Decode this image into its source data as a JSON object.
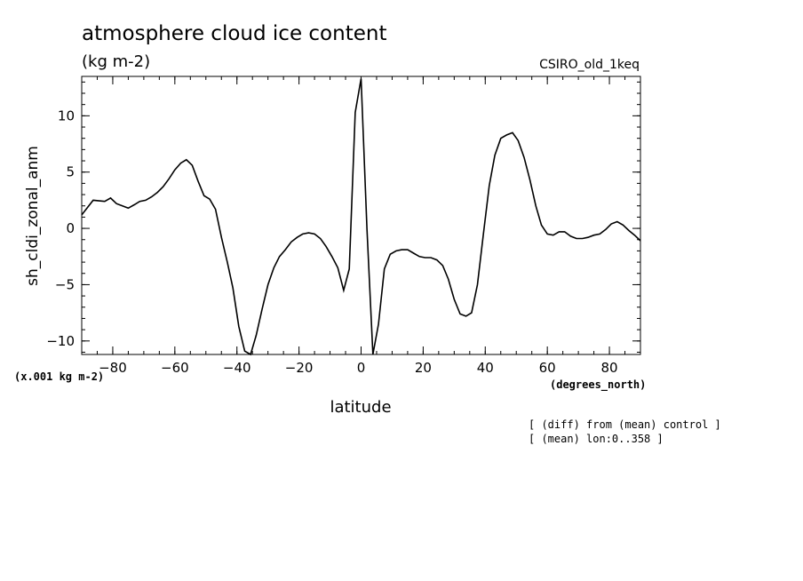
{
  "title": "atmosphere cloud ice content",
  "units": "(kg m-2)",
  "model": "CSIRO_old_1keq",
  "notes": [
    "[ (diff) from (mean) control ]",
    "[ (mean) lon:0..358 ]"
  ],
  "chart_data": {
    "type": "line",
    "title": "atmosphere cloud ice content",
    "xlabel": "latitude",
    "xunits": "(degrees_north)",
    "ylabel": "sh_cldi_zonal_anm",
    "yunits": "(x.001 kg m-2)",
    "xlim": [
      -90,
      90
    ],
    "ylim": [
      -11.2,
      13.5
    ],
    "xticks": [
      -80,
      -60,
      -40,
      -20,
      0,
      20,
      40,
      60,
      80
    ],
    "yticks": [
      -10,
      -5,
      0,
      5,
      10
    ],
    "grid": false,
    "series": [
      {
        "x": [
          -90,
          -86.3,
          -82.6,
          -80.7,
          -78.8,
          -76.9,
          -75.0,
          -73.1,
          -71.3,
          -69.4,
          -67.5,
          -65.6,
          -63.8,
          -61.9,
          -60.0,
          -58.1,
          -56.3,
          -54.4,
          -52.5,
          -50.6,
          -48.8,
          -46.9,
          -45.0,
          -43.1,
          -41.3,
          -39.4,
          -37.5,
          -35.6,
          -33.8,
          -31.9,
          -30.0,
          -28.1,
          -26.3,
          -24.4,
          -22.5,
          -20.6,
          -18.8,
          -16.9,
          -15.0,
          -13.1,
          -11.3,
          -9.4,
          -7.5,
          -5.6,
          -3.8,
          -1.9,
          0.0,
          1.9,
          3.8,
          5.6,
          7.5,
          9.4,
          11.3,
          13.1,
          15.0,
          16.9,
          18.8,
          20.6,
          22.5,
          24.4,
          26.3,
          28.1,
          30.0,
          31.9,
          33.8,
          35.6,
          37.5,
          39.4,
          41.3,
          43.1,
          45.0,
          46.9,
          48.8,
          50.6,
          52.5,
          54.4,
          56.3,
          58.1,
          60.0,
          61.9,
          63.8,
          65.6,
          67.5,
          69.4,
          71.3,
          73.1,
          75.0,
          76.9,
          78.8,
          80.6,
          82.5,
          84.4,
          86.3,
          88.1,
          90.0
        ],
        "y": [
          1.2,
          2.5,
          2.4,
          2.7,
          2.2,
          2.0,
          1.8,
          2.1,
          2.4,
          2.5,
          2.8,
          3.2,
          3.7,
          4.4,
          5.2,
          5.8,
          6.1,
          5.6,
          4.2,
          2.9,
          2.6,
          1.7,
          -0.8,
          -3.0,
          -5.3,
          -8.7,
          -10.9,
          -11.2,
          -9.5,
          -7.2,
          -5.0,
          -3.5,
          -2.5,
          -1.9,
          -1.2,
          -0.8,
          -0.5,
          -0.4,
          -0.5,
          -0.9,
          -1.6,
          -2.5,
          -3.5,
          -5.5,
          -3.6,
          10.3,
          13.3,
          0.0,
          -11.2,
          -8.5,
          -3.6,
          -2.3,
          -2.0,
          -1.9,
          -1.9,
          -2.2,
          -2.5,
          -2.6,
          -2.6,
          -2.8,
          -3.3,
          -4.5,
          -6.3,
          -7.6,
          -7.8,
          -7.5,
          -5.0,
          -0.5,
          3.8,
          6.5,
          8.0,
          8.3,
          8.5,
          7.8,
          6.3,
          4.3,
          2.0,
          0.3,
          -0.5,
          -0.6,
          -0.3,
          -0.3,
          -0.7,
          -0.9,
          -0.9,
          -0.8,
          -0.6,
          -0.5,
          -0.1,
          0.4,
          0.6,
          0.3,
          -0.2,
          -0.6,
          -1.1
        ]
      }
    ]
  }
}
